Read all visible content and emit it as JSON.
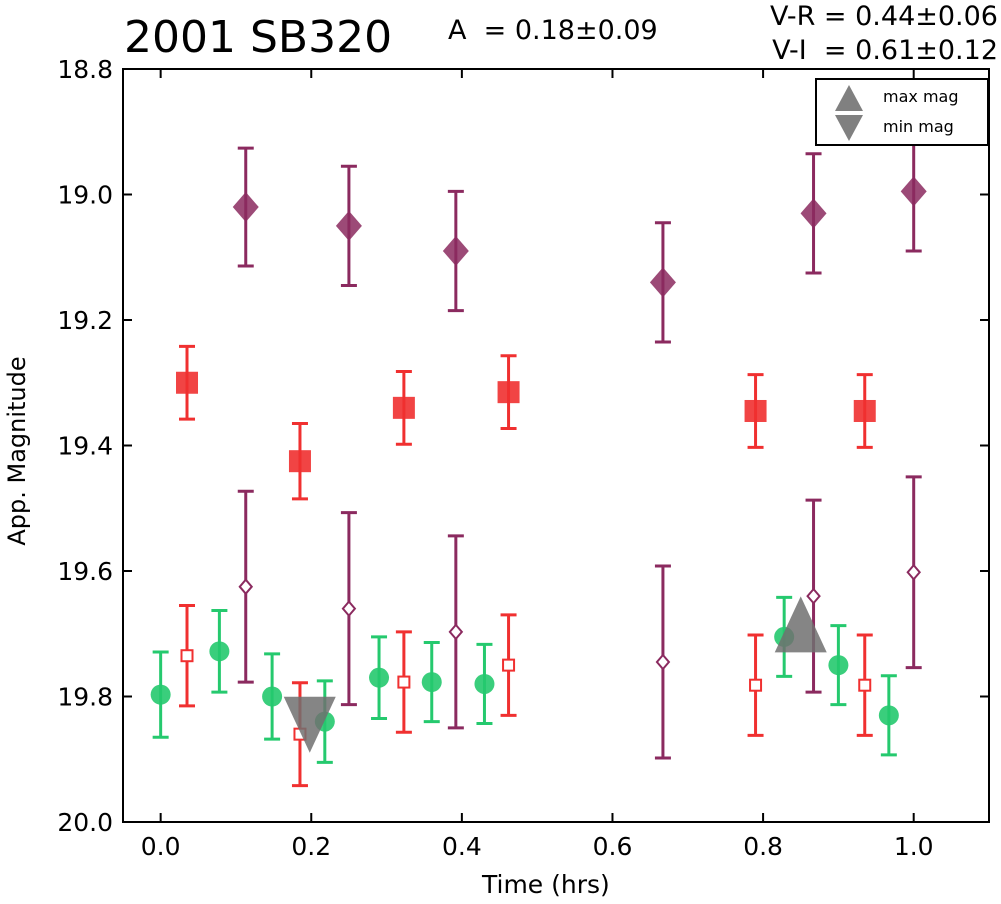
{
  "chart_data": {
    "type": "scatter",
    "title": "2001 SB320",
    "amplitude": "A  = 0.18±0.09",
    "color_vr": "V-R = 0.44±0.06",
    "color_vi": "V-I  = 0.61±0.12",
    "xlabel": "Time (hrs)",
    "ylabel": "App. Magnitude",
    "xlim": [
      -0.05,
      1.1
    ],
    "ylim": [
      20.0,
      18.8
    ],
    "y_inverted": true,
    "grid": false,
    "x_ticks": [
      "0.0",
      "0.2",
      "0.4",
      "0.6",
      "0.8",
      "1.0"
    ],
    "y_ticks": [
      "18.8",
      "19.0",
      "19.2",
      "19.4",
      "19.6",
      "19.8",
      "20.0"
    ],
    "legend_position": "top-right",
    "legend": [
      {
        "label": "max mag",
        "marker": "triangle-up",
        "color": "#808080"
      },
      {
        "label": "min mag",
        "marker": "triangle-down",
        "color": "#808080"
      }
    ],
    "series": [
      {
        "marker": "diamond",
        "color": "#8b2a5f",
        "points": [
          [
            0.113,
            19.02,
            0.094
          ],
          [
            0.25,
            19.05,
            0.095
          ],
          [
            0.392,
            19.09,
            0.095
          ],
          [
            0.667,
            19.14,
            0.095
          ],
          [
            0.867,
            19.03,
            0.095
          ],
          [
            1.0,
            18.995,
            0.095
          ]
        ]
      },
      {
        "marker": "square",
        "color": "#f03030",
        "points": [
          [
            0.035,
            19.3,
            0.058
          ],
          [
            0.185,
            19.425,
            0.06
          ],
          [
            0.323,
            19.34,
            0.058
          ],
          [
            0.462,
            19.315,
            0.058
          ],
          [
            0.79,
            19.345,
            0.058
          ],
          [
            0.935,
            19.345,
            0.058
          ]
        ]
      },
      {
        "marker": "circle",
        "color": "#25c96e",
        "points": [
          [
            0.0,
            19.797,
            0.068
          ],
          [
            0.078,
            19.728,
            0.065
          ],
          [
            0.148,
            19.8,
            0.068
          ],
          [
            0.218,
            19.84,
            0.065
          ],
          [
            0.29,
            19.77,
            0.065
          ],
          [
            0.36,
            19.777,
            0.063
          ],
          [
            0.43,
            19.78,
            0.063
          ],
          [
            0.828,
            19.705,
            0.063
          ],
          [
            0.9,
            19.75,
            0.063
          ],
          [
            0.967,
            19.83,
            0.063
          ]
        ]
      },
      {
        "marker": "open-square",
        "color": "#f03030",
        "points": [
          [
            0.035,
            19.735,
            0.08
          ],
          [
            0.185,
            19.86,
            0.082
          ],
          [
            0.323,
            19.777,
            0.08
          ],
          [
            0.462,
            19.75,
            0.08
          ],
          [
            0.79,
            19.782,
            0.08
          ],
          [
            0.935,
            19.782,
            0.08
          ]
        ]
      },
      {
        "marker": "open-diamond",
        "color": "#8b2a5f",
        "points": [
          [
            0.113,
            19.625,
            0.152
          ],
          [
            0.25,
            19.66,
            0.153
          ],
          [
            0.392,
            19.697,
            0.153
          ],
          [
            0.667,
            19.745,
            0.153
          ],
          [
            0.867,
            19.64,
            0.153
          ],
          [
            1.0,
            19.602,
            0.152
          ]
        ]
      }
    ],
    "extrema_markers": [
      {
        "label": "max mag",
        "marker": "triangle-up",
        "x": 0.85,
        "y": 19.685
      },
      {
        "label": "min mag",
        "marker": "triangle-down",
        "x": 0.198,
        "y": 19.845
      }
    ]
  }
}
